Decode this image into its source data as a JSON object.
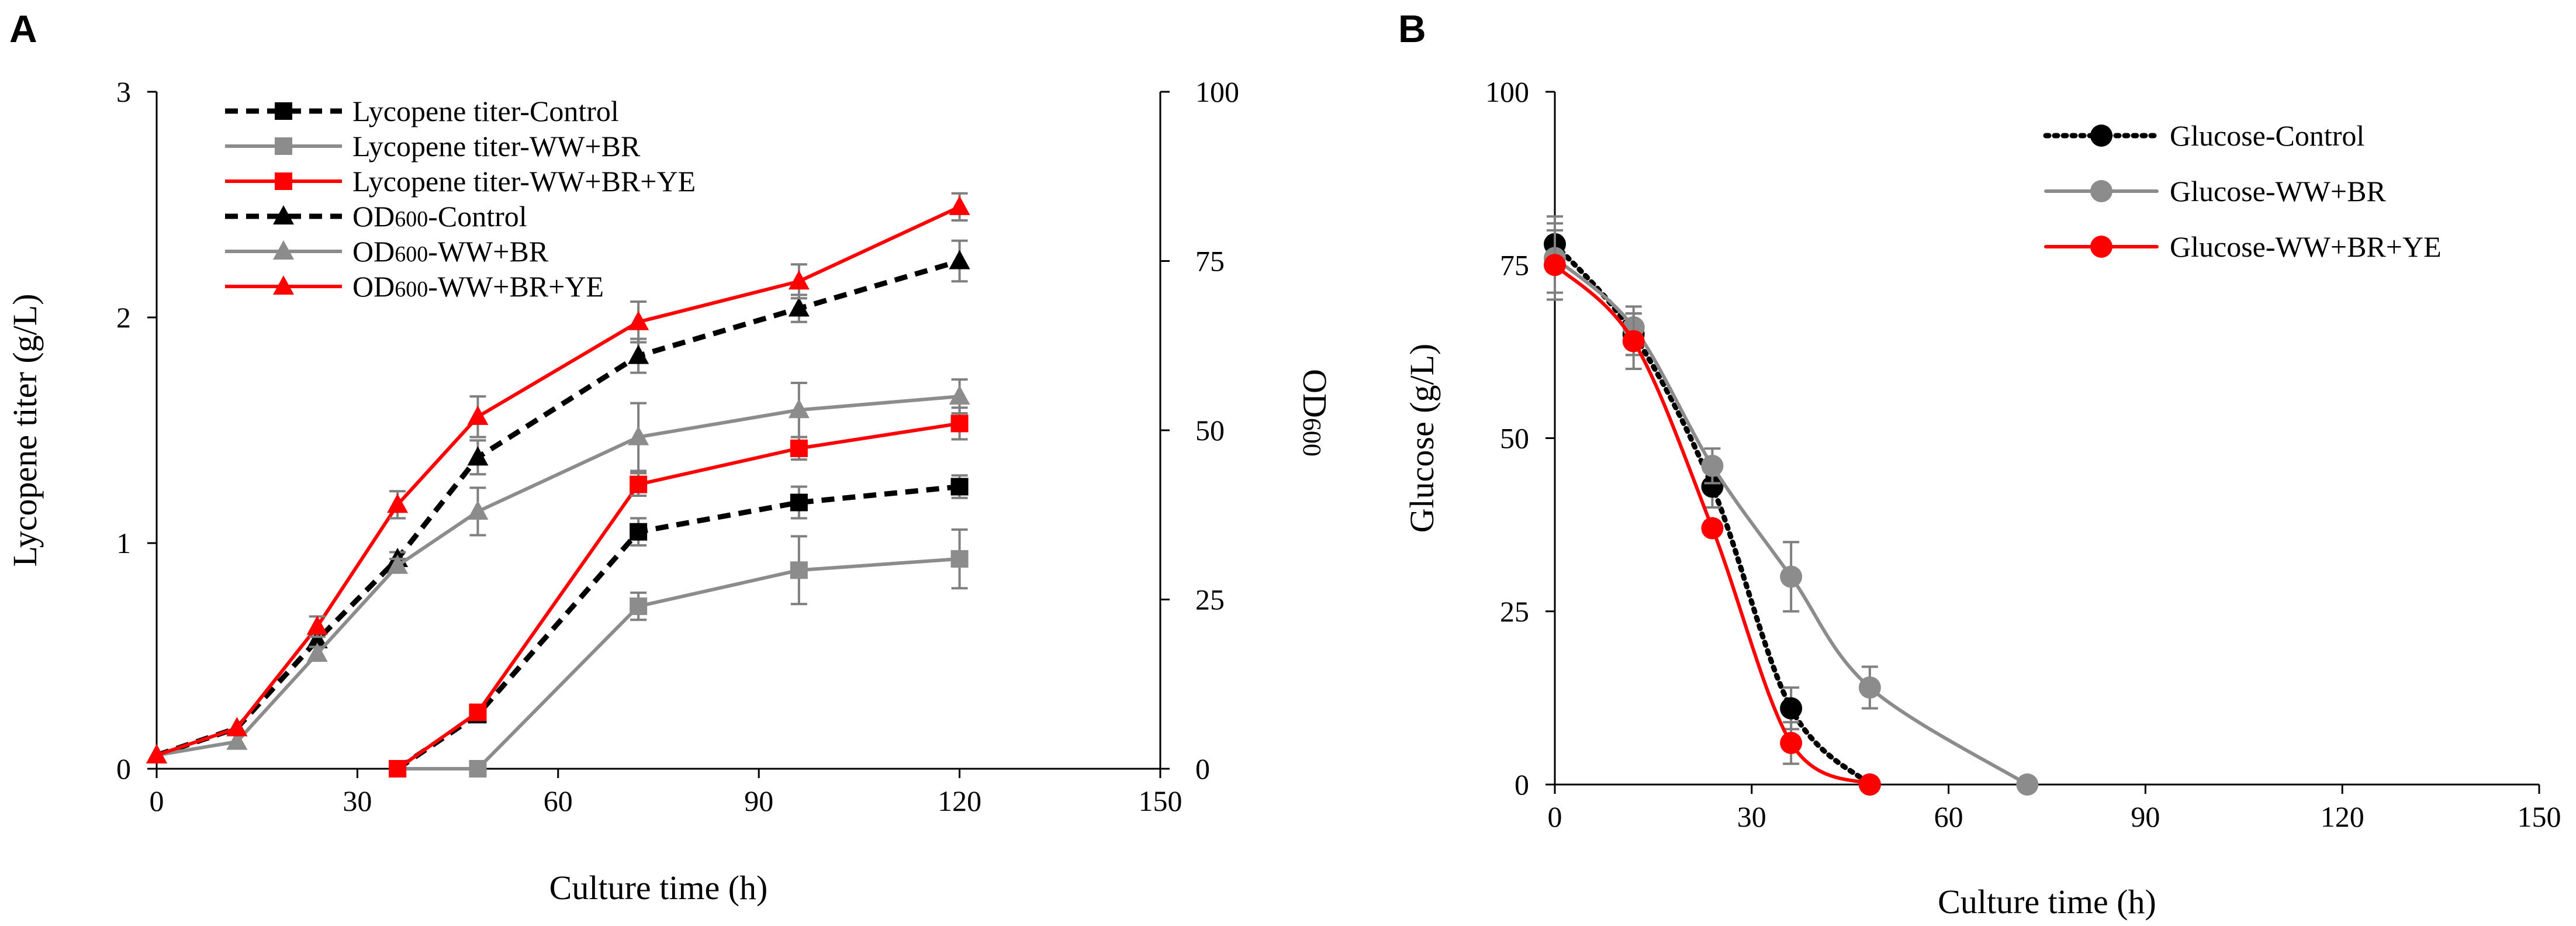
{
  "chart_data": [
    {
      "panel": "A",
      "type": "line",
      "xlabel": "Culture time (h)",
      "ylabel": "Lycopene titer (g/L)",
      "y2label": "OD600",
      "y2label_main": "OD",
      "y2label_sub": "600",
      "xlim": [
        0,
        150
      ],
      "ylim": [
        0,
        3
      ],
      "y2lim": [
        0,
        100
      ],
      "xticks": [
        "0",
        "30",
        "60",
        "90",
        "120",
        "150"
      ],
      "yticks": [
        "0",
        "1",
        "2",
        "3"
      ],
      "y2ticks": [
        "0",
        "25",
        "50",
        "75",
        "100"
      ],
      "series": [
        {
          "name": "Lycopene titer-Control",
          "axis": "left",
          "color": "#000000",
          "dash": "dashed",
          "marker": "square",
          "x": [
            36,
            48,
            72,
            96,
            120
          ],
          "y": [
            0,
            0.24,
            1.05,
            1.18,
            1.25
          ],
          "err": [
            0,
            0.03,
            0.06,
            0.07,
            0.05
          ],
          "label_parts": [
            {
              "t": "Lycopene titer-Control",
              "sub": false
            }
          ]
        },
        {
          "name": "Lycopene titer-WW+BR",
          "axis": "left",
          "color": "#8c8c8c",
          "dash": "solid",
          "marker": "square",
          "x": [
            36,
            48,
            72,
            96,
            120
          ],
          "y": [
            0,
            0,
            0.72,
            0.88,
            0.93
          ],
          "err": [
            0,
            0,
            0.06,
            0.15,
            0.13
          ],
          "label_parts": [
            {
              "t": "Lycopene titer-WW+BR",
              "sub": false
            }
          ]
        },
        {
          "name": "Lycopene titer-WW+BR+YE",
          "axis": "left",
          "color": "#ff0000",
          "dash": "solid",
          "marker": "square",
          "x": [
            36,
            48,
            72,
            96,
            120
          ],
          "y": [
            0,
            0.25,
            1.26,
            1.42,
            1.53
          ],
          "err": [
            0,
            0.02,
            0.05,
            0.05,
            0.07
          ],
          "label_parts": [
            {
              "t": "Lycopene titer-WW+BR+YE",
              "sub": false
            }
          ]
        },
        {
          "name": "OD600-Control",
          "axis": "right",
          "color": "#000000",
          "dash": "dashed",
          "marker": "triangle",
          "x": [
            0,
            12,
            24,
            36,
            48,
            72,
            96,
            120
          ],
          "y": [
            2,
            6,
            19,
            31,
            46,
            61,
            68,
            75
          ],
          "err": [
            0,
            0,
            1,
            1,
            2.5,
            2.5,
            2,
            3
          ],
          "label_parts": [
            {
              "t": "OD",
              "sub": false
            },
            {
              "t": "600",
              "sub": true
            },
            {
              "t": "-Control",
              "sub": false
            }
          ]
        },
        {
          "name": "OD600-WW+BR",
          "axis": "right",
          "color": "#8c8c8c",
          "dash": "solid",
          "marker": "triangle",
          "x": [
            0,
            12,
            24,
            36,
            48,
            72,
            96,
            120
          ],
          "y": [
            2,
            4,
            17,
            30,
            38,
            49,
            53,
            55
          ],
          "err": [
            0,
            0,
            1,
            1,
            3.5,
            5,
            4,
            2.5
          ],
          "label_parts": [
            {
              "t": "OD",
              "sub": false
            },
            {
              "t": "600",
              "sub": true
            },
            {
              "t": "-WW+BR",
              "sub": false
            }
          ]
        },
        {
          "name": "OD600-WW+BR+YE",
          "axis": "right",
          "color": "#ff0000",
          "dash": "solid",
          "marker": "triangle",
          "x": [
            0,
            12,
            24,
            36,
            48,
            72,
            96,
            120
          ],
          "y": [
            2,
            6,
            21,
            39,
            52,
            66,
            72,
            83
          ],
          "err": [
            0,
            0,
            1.5,
            2,
            3,
            3,
            2.5,
            2
          ],
          "label_parts": [
            {
              "t": "OD",
              "sub": false
            },
            {
              "t": "600",
              "sub": true
            },
            {
              "t": "-WW+BR+YE",
              "sub": false
            }
          ]
        }
      ]
    },
    {
      "panel": "B",
      "type": "line",
      "xlabel": "Culture time (h)",
      "ylabel": "Glucose (g/L)",
      "xlim": [
        0,
        150
      ],
      "ylim": [
        0,
        100
      ],
      "xticks": [
        "0",
        "30",
        "60",
        "90",
        "120",
        "150"
      ],
      "yticks": [
        "0",
        "25",
        "50",
        "75",
        "100"
      ],
      "series": [
        {
          "name": "Glucose-Control",
          "color": "#000000",
          "dash": "dotted",
          "marker": "circle",
          "x": [
            0,
            12,
            24,
            36,
            48
          ],
          "y": [
            78,
            65,
            43,
            11,
            0
          ],
          "err": [
            4,
            3,
            3,
            3,
            0
          ],
          "label_parts": [
            {
              "t": "Glucose-Control",
              "sub": false
            }
          ]
        },
        {
          "name": "Glucose-WW+BR",
          "color": "#8c8c8c",
          "dash": "solid",
          "marker": "circle",
          "x": [
            0,
            12,
            24,
            36,
            48,
            72
          ],
          "y": [
            76,
            66,
            46,
            30,
            14,
            0
          ],
          "err": [
            5,
            3,
            2.5,
            5,
            3,
            0
          ],
          "label_parts": [
            {
              "t": "Glucose-WW+BR",
              "sub": false
            }
          ]
        },
        {
          "name": "Glucose-WW+BR+YE",
          "color": "#ff0000",
          "dash": "solid",
          "marker": "circle",
          "x": [
            0,
            12,
            24,
            36,
            48
          ],
          "y": [
            75,
            64,
            37,
            6,
            0
          ],
          "err": [
            5,
            4,
            1,
            3,
            0
          ],
          "label_parts": [
            {
              "t": "Glucose-WW+BR+YE",
              "sub": false
            }
          ]
        }
      ]
    }
  ]
}
